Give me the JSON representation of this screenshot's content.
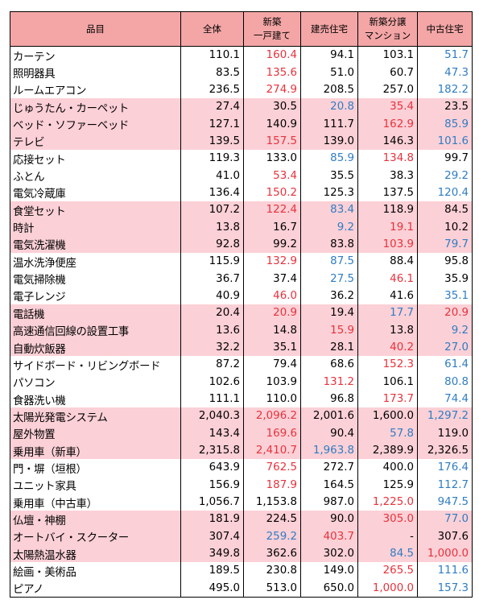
{
  "colors": {
    "header_bg": "#f4a6a6",
    "band_bg": "#fbd0d6",
    "high": "#e8323c",
    "low": "#2f7dc4"
  },
  "headers": [
    "品目",
    "全体",
    "新築\n一戸建て",
    "建売住宅",
    "新築分譲\nマンション",
    "中古住宅"
  ],
  "rows": [
    {
      "name": "カーテン",
      "band": false,
      "values": [
        "110.1",
        "160.4",
        "94.1",
        "103.1",
        "51.7"
      ],
      "marks": [
        "",
        "hi",
        "",
        "",
        "lo"
      ]
    },
    {
      "name": "照明器具",
      "band": false,
      "values": [
        "83.5",
        "135.6",
        "51.0",
        "60.7",
        "47.3"
      ],
      "marks": [
        "",
        "hi",
        "",
        "",
        "lo"
      ]
    },
    {
      "name": "ルームエアコン",
      "band": false,
      "values": [
        "236.5",
        "274.9",
        "208.5",
        "257.0",
        "182.2"
      ],
      "marks": [
        "",
        "hi",
        "",
        "",
        "lo"
      ]
    },
    {
      "name": "じゅうたん・カーペット",
      "band": true,
      "values": [
        "27.4",
        "30.5",
        "20.8",
        "35.4",
        "23.5"
      ],
      "marks": [
        "",
        "",
        "lo",
        "hi",
        ""
      ]
    },
    {
      "name": "ベッド・ソファーベッド",
      "band": true,
      "values": [
        "127.1",
        "140.9",
        "111.7",
        "162.9",
        "85.9"
      ],
      "marks": [
        "",
        "",
        "",
        "hi",
        "lo"
      ]
    },
    {
      "name": "テレビ",
      "band": true,
      "values": [
        "139.5",
        "157.5",
        "139.0",
        "146.3",
        "101.6"
      ],
      "marks": [
        "",
        "hi",
        "",
        "",
        "lo"
      ]
    },
    {
      "name": "応接セット",
      "band": false,
      "values": [
        "119.3",
        "133.0",
        "85.9",
        "134.8",
        "99.7"
      ],
      "marks": [
        "",
        "",
        "lo",
        "hi",
        ""
      ]
    },
    {
      "name": "ふとん",
      "band": false,
      "values": [
        "41.0",
        "53.4",
        "35.5",
        "38.3",
        "29.2"
      ],
      "marks": [
        "",
        "hi",
        "",
        "",
        "lo"
      ]
    },
    {
      "name": "電気冷蔵庫",
      "band": false,
      "values": [
        "136.4",
        "150.2",
        "125.3",
        "137.5",
        "120.4"
      ],
      "marks": [
        "",
        "hi",
        "",
        "",
        "lo"
      ]
    },
    {
      "name": "食堂セット",
      "band": true,
      "values": [
        "107.2",
        "122.4",
        "83.4",
        "118.9",
        "84.5"
      ],
      "marks": [
        "",
        "hi",
        "lo",
        "",
        ""
      ]
    },
    {
      "name": "時計",
      "band": true,
      "values": [
        "13.8",
        "16.7",
        "9.2",
        "19.1",
        "10.2"
      ],
      "marks": [
        "",
        "",
        "lo",
        "hi",
        ""
      ]
    },
    {
      "name": "電気洗濯機",
      "band": true,
      "values": [
        "92.8",
        "99.2",
        "83.8",
        "103.9",
        "79.7"
      ],
      "marks": [
        "",
        "",
        "",
        "hi",
        "lo"
      ]
    },
    {
      "name": "温水洗浄便座",
      "band": false,
      "values": [
        "115.9",
        "132.9",
        "87.5",
        "88.4",
        "95.8"
      ],
      "marks": [
        "",
        "hi",
        "lo",
        "",
        ""
      ]
    },
    {
      "name": "電気掃除機",
      "band": false,
      "values": [
        "36.7",
        "37.4",
        "27.5",
        "46.1",
        "35.9"
      ],
      "marks": [
        "",
        "",
        "lo",
        "hi",
        ""
      ]
    },
    {
      "name": "電子レンジ",
      "band": false,
      "values": [
        "40.9",
        "46.0",
        "36.2",
        "41.6",
        "35.1"
      ],
      "marks": [
        "",
        "hi",
        "",
        "",
        "lo"
      ]
    },
    {
      "name": "電話機",
      "band": true,
      "values": [
        "20.4",
        "20.9",
        "19.4",
        "17.7",
        "20.9"
      ],
      "marks": [
        "",
        "hi",
        "",
        "lo",
        "hi"
      ]
    },
    {
      "name": "高速通信回線の設置工事",
      "band": true,
      "values": [
        "13.6",
        "14.8",
        "15.9",
        "13.8",
        "9.2"
      ],
      "marks": [
        "",
        "",
        "hi",
        "",
        "lo"
      ]
    },
    {
      "name": "自動炊飯器",
      "band": true,
      "values": [
        "32.2",
        "35.1",
        "28.1",
        "40.2",
        "27.0"
      ],
      "marks": [
        "",
        "",
        "",
        "hi",
        "lo"
      ]
    },
    {
      "name": "サイドボード・リビングボード",
      "band": false,
      "values": [
        "87.2",
        "79.4",
        "68.6",
        "152.3",
        "61.4"
      ],
      "marks": [
        "",
        "",
        "",
        "hi",
        "lo"
      ]
    },
    {
      "name": "パソコン",
      "band": false,
      "values": [
        "102.6",
        "103.9",
        "131.2",
        "106.1",
        "80.8"
      ],
      "marks": [
        "",
        "",
        "hi",
        "",
        "lo"
      ]
    },
    {
      "name": "食器洗い機",
      "band": false,
      "values": [
        "111.1",
        "110.0",
        "96.8",
        "173.7",
        "74.4"
      ],
      "marks": [
        "",
        "",
        "",
        "hi",
        "lo"
      ]
    },
    {
      "name": "太陽光発電システム",
      "band": true,
      "values": [
        "2,040.3",
        "2,096.2",
        "2,001.6",
        "1,600.0",
        "1,297.2"
      ],
      "marks": [
        "",
        "hi",
        "",
        "",
        "lo"
      ]
    },
    {
      "name": "屋外物置",
      "band": true,
      "values": [
        "143.4",
        "169.6",
        "90.4",
        "57.8",
        "119.0"
      ],
      "marks": [
        "",
        "hi",
        "",
        "lo",
        ""
      ]
    },
    {
      "name": "乗用車（新車）",
      "band": true,
      "values": [
        "2,315.8",
        "2,410.7",
        "1,963.8",
        "2,389.9",
        "2,326.5"
      ],
      "marks": [
        "",
        "hi",
        "lo",
        "",
        ""
      ]
    },
    {
      "name": "門・塀（垣根）",
      "band": false,
      "values": [
        "643.9",
        "762.5",
        "272.7",
        "400.0",
        "176.4"
      ],
      "marks": [
        "",
        "hi",
        "",
        "",
        "lo"
      ]
    },
    {
      "name": "ユニット家具",
      "band": false,
      "values": [
        "156.9",
        "187.9",
        "164.5",
        "125.9",
        "112.7"
      ],
      "marks": [
        "",
        "hi",
        "",
        "",
        "lo"
      ]
    },
    {
      "name": "乗用車（中古車）",
      "band": false,
      "values": [
        "1,056.7",
        "1,153.8",
        "987.0",
        "1,225.0",
        "947.5"
      ],
      "marks": [
        "",
        "",
        "",
        "hi",
        "lo"
      ]
    },
    {
      "name": "仏壇・神棚",
      "band": true,
      "values": [
        "181.9",
        "224.5",
        "90.0",
        "305.0",
        "77.0"
      ],
      "marks": [
        "",
        "",
        "",
        "hi",
        "lo"
      ]
    },
    {
      "name": "オートバイ・スクーター",
      "band": true,
      "values": [
        "307.4",
        "259.2",
        "403.7",
        "-",
        "307.6"
      ],
      "marks": [
        "",
        "lo",
        "hi",
        "",
        ""
      ]
    },
    {
      "name": "太陽熱温水器",
      "band": true,
      "values": [
        "349.8",
        "362.6",
        "302.0",
        "84.5",
        "1,000.0"
      ],
      "marks": [
        "",
        "",
        "",
        "lo",
        "hi"
      ]
    },
    {
      "name": "絵画・美術品",
      "band": false,
      "values": [
        "189.5",
        "230.8",
        "149.0",
        "265.5",
        "111.6"
      ],
      "marks": [
        "",
        "",
        "",
        "hi",
        "lo"
      ]
    },
    {
      "name": "ピアノ",
      "band": false,
      "values": [
        "495.0",
        "513.0",
        "650.0",
        "1,000.0",
        "157.3"
      ],
      "marks": [
        "",
        "",
        "",
        "hi",
        "lo"
      ]
    }
  ]
}
